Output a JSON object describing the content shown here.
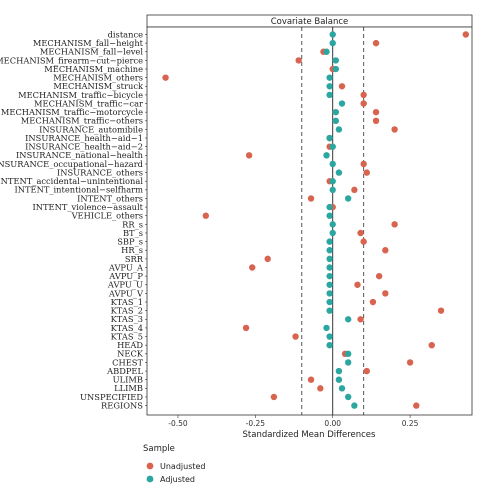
{
  "chart_data": {
    "type": "scatter",
    "title": "Covariate Balance",
    "xlabel": "Standardized Mean Differences",
    "ylabel": "",
    "xlim": [
      -0.6,
      0.45
    ],
    "xticks": [
      -0.5,
      -0.25,
      0.0,
      0.25
    ],
    "xtick_labels": [
      "-0.50",
      "-0.25",
      "0.00",
      "0.25"
    ],
    "threshold_lines": [
      -0.1,
      0.1
    ],
    "zero_line": 0,
    "legend_title": "Sample",
    "legend_position": "bottom-left",
    "colors": {
      "Unadjusted": "#d8634f",
      "Adjusted": "#2ba6a0"
    },
    "categories": [
      "distance",
      "MECHANISM_fall−height",
      "MECHANISM_fall−level",
      "MECHANISM_firearm−cut−pierce",
      "MECHANISM_machine",
      "MECHANISM_others",
      "MECHANISM_struck",
      "MECHANISM_traffic−bicycle",
      "MECHANISM_traffic−car",
      "MECHANISM_traffic−motorcycle",
      "MECHANISM_traffic−others",
      "INSURANCE_automibile",
      "INSURANCE_health−aid−1",
      "INSURANCE_health−aid−2",
      "INSURANCE_national−health",
      "INSURANCE_occupational−hazard",
      "INSURANCE_others",
      "INTENT_accidental−unintentional",
      "INTENT_intentional−selfharm",
      "INTENT_others",
      "INTENT_violence−assault",
      "VEHICLE_others",
      "RR_s",
      "BT_s",
      "SBP_s",
      "HR_s",
      "SRR",
      "AVPU_A",
      "AVPU_P",
      "AVPU_U",
      "AVPU_V",
      "KTAS_1",
      "KTAS_2",
      "KTAS_3",
      "KTAS_4",
      "KTAS_5",
      "HEAD",
      "NECK",
      "CHEST",
      "ABDPEL",
      "ULIMB",
      "LLIMB",
      "UNSPECIFIED",
      "REGIONS"
    ],
    "series": [
      {
        "name": "Unadjusted",
        "values": [
          0.43,
          0.14,
          -0.03,
          -0.11,
          0.0,
          -0.54,
          0.03,
          0.1,
          0.1,
          0.14,
          0.14,
          0.2,
          -0.01,
          -0.01,
          -0.27,
          0.1,
          0.11,
          -0.01,
          0.07,
          -0.07,
          0.0,
          -0.41,
          0.2,
          0.09,
          0.1,
          0.17,
          -0.21,
          -0.26,
          0.15,
          0.08,
          0.17,
          0.13,
          0.35,
          0.09,
          -0.28,
          -0.12,
          0.32,
          0.04,
          0.25,
          0.11,
          -0.07,
          -0.04,
          -0.19,
          0.27
        ]
      },
      {
        "name": "Adjusted",
        "values": [
          0.0,
          0.0,
          -0.02,
          0.01,
          0.01,
          -0.01,
          -0.01,
          -0.01,
          0.03,
          0.01,
          0.01,
          0.02,
          -0.01,
          0.0,
          -0.02,
          0.0,
          0.02,
          0.0,
          0.0,
          0.05,
          -0.01,
          -0.01,
          0.0,
          0.0,
          -0.01,
          -0.01,
          -0.01,
          -0.01,
          -0.01,
          -0.01,
          -0.01,
          -0.01,
          -0.01,
          0.05,
          -0.02,
          -0.01,
          -0.01,
          0.05,
          0.05,
          0.02,
          0.02,
          0.03,
          0.05,
          0.07
        ]
      }
    ]
  }
}
